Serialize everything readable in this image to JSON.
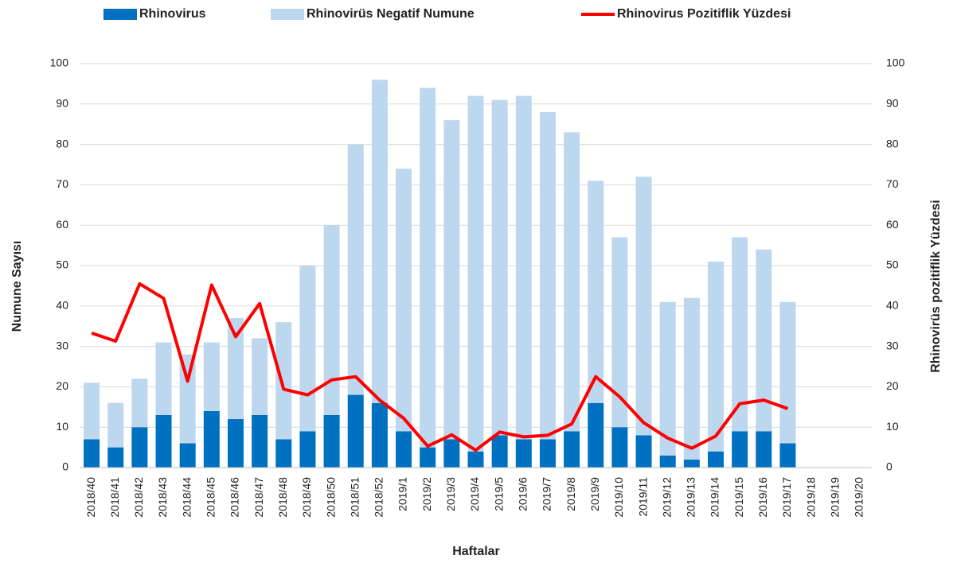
{
  "chart_data": {
    "type": "bar",
    "stacked": true,
    "x_label": "Haftalar",
    "y_label": "Numune Sayısı",
    "y2_label": "Rhinovirüs pozitiflik Yüzdesi",
    "categories": [
      "2018/40",
      "2018/41",
      "2018/42",
      "2018/43",
      "2018/44",
      "2018/45",
      "2018/46",
      "2018/47",
      "2018/48",
      "2018/49",
      "2018/50",
      "2018/51",
      "2018/52",
      "2019/1",
      "2019/2",
      "2019/3",
      "2019/4",
      "2019/5",
      "2019/6",
      "2019/7",
      "2019/8",
      "2019/9",
      "2019/10",
      "2019/11",
      "2019/12",
      "2019/13",
      "2019/14",
      "2019/15",
      "2019/16",
      "2019/17",
      "2019/18",
      "2019/19",
      "2019/20"
    ],
    "series": [
      {
        "name": "Rhinovirus",
        "color": "#0070c0",
        "values": [
          7,
          5,
          10,
          13,
          6,
          14,
          12,
          13,
          7,
          9,
          13,
          18,
          16,
          9,
          5,
          7,
          4,
          8,
          7,
          7,
          9,
          16,
          10,
          8,
          3,
          2,
          4,
          9,
          9,
          6,
          null,
          null,
          null
        ]
      },
      {
        "name": "Rhinovirüs Negatif Numune",
        "color": "#bdd7ee",
        "values": [
          14,
          11,
          12,
          18,
          22,
          17,
          25,
          19,
          29,
          41,
          47,
          62,
          80,
          65,
          89,
          79,
          88,
          83,
          85,
          81,
          74,
          55,
          47,
          64,
          38,
          40,
          47,
          48,
          45,
          35,
          null,
          null,
          null
        ]
      },
      {
        "name": "Rhinovirus Pozitiflik Yüzdesi",
        "color": "#ff0000",
        "type": "line",
        "axis": "y2",
        "values": [
          33.3,
          31.3,
          45.5,
          41.9,
          21.4,
          45.2,
          32.4,
          40.6,
          19.4,
          18,
          21.7,
          22.5,
          16.7,
          12.2,
          5.3,
          8.1,
          4.3,
          8.8,
          7.6,
          8,
          10.8,
          22.5,
          17.5,
          11.1,
          7.3,
          4.8,
          7.8,
          15.8,
          16.7,
          14.6,
          null,
          null,
          null
        ]
      }
    ],
    "ylim": [
      0,
      100
    ],
    "yticks": [
      0,
      10,
      20,
      30,
      40,
      50,
      60,
      70,
      80,
      90,
      100
    ],
    "y2lim": [
      0,
      100
    ],
    "y2ticks": [
      0,
      10,
      20,
      30,
      40,
      50,
      60,
      70,
      80,
      90,
      100
    ],
    "grid": true,
    "legend": "top"
  }
}
